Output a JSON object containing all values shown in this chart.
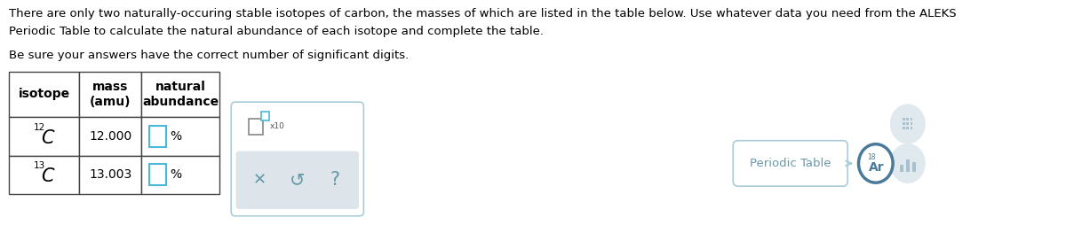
{
  "text_line1": "There are only two naturally-occuring stable isotopes of carbon, the masses of which are listed in the table below. Use whatever data you need from the ALEKS",
  "text_line2": "Periodic Table to calculate the natural abundance of each isotope and complete the table.",
  "text_line3": "Be sure your answers have the correct number of significant digits.",
  "row1_mass": "12.000",
  "row2_mass": "13.003",
  "percent_symbol": "%",
  "bg_color": "#ffffff",
  "table_border_color": "#444444",
  "text_color": "#000000",
  "input_box_color": "#4ab8d8",
  "tool_border_color": "#aaccd8",
  "gray_fill": "#dde5ea",
  "btn_color": "#6699aa",
  "periodic_text_color": "#6699aa",
  "periodic_border_color": "#aaccd8",
  "ar_border_color": "#4a7a99",
  "icon_gray": "#aac0cc",
  "font_size_body": 9.5,
  "font_size_table_header": 10,
  "font_size_table_body": 10
}
